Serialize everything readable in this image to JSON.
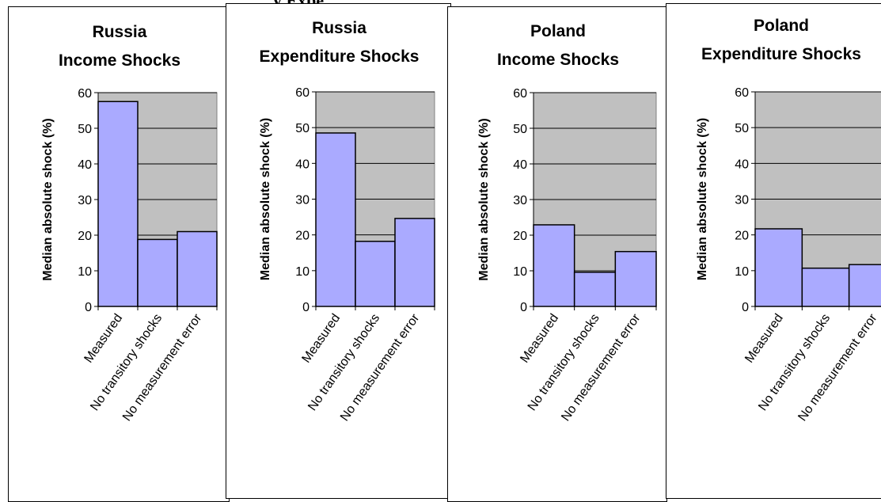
{
  "figure_heading_fragment": "y Expe",
  "chart_data": [
    {
      "type": "bar",
      "title_line1": "Russia",
      "title_line2": "Income Shocks",
      "ylabel": "Median absolute shock (%)",
      "ylim": [
        0,
        60
      ],
      "yticks": [
        0,
        10,
        20,
        30,
        40,
        50,
        60
      ],
      "categories": [
        "Measured",
        "No transitory shocks",
        "No measurement error"
      ],
      "values": [
        57.5,
        18.8,
        21.0
      ],
      "bar_color": "#aaaaff",
      "plot_background": "#c0c0c0",
      "grid": true
    },
    {
      "type": "bar",
      "title_line1": "Russia",
      "title_line2": "Expenditure Shocks",
      "ylabel": "Median absolute shock (%)",
      "ylim": [
        0,
        60
      ],
      "yticks": [
        0,
        10,
        20,
        30,
        40,
        50,
        60
      ],
      "categories": [
        "Measured",
        "No transitory shocks",
        "No measurement error"
      ],
      "values": [
        48.5,
        18.2,
        24.6
      ],
      "bar_color": "#aaaaff",
      "plot_background": "#c0c0c0",
      "grid": true
    },
    {
      "type": "bar",
      "title_line1": "Poland",
      "title_line2": "Income Shocks",
      "ylabel": "Median absolute shock (%)",
      "ylim": [
        0,
        60
      ],
      "yticks": [
        0,
        10,
        20,
        30,
        40,
        50,
        60
      ],
      "categories": [
        "Measured",
        "No transitory shocks",
        "No measurement error"
      ],
      "values": [
        22.9,
        9.6,
        15.4
      ],
      "bar_color": "#aaaaff",
      "plot_background": "#c0c0c0",
      "grid": true
    },
    {
      "type": "bar",
      "title_line1": "Poland",
      "title_line2": "Expenditure Shocks",
      "ylabel": "Median absolute shock (%)",
      "ylim": [
        0,
        60
      ],
      "yticks": [
        0,
        10,
        20,
        30,
        40,
        50,
        60
      ],
      "categories": [
        "Measured",
        "No transitory shocks",
        "No measurement error"
      ],
      "values": [
        21.7,
        10.7,
        11.7
      ],
      "bar_color": "#aaaaff",
      "plot_background": "#c0c0c0",
      "grid": true
    }
  ]
}
